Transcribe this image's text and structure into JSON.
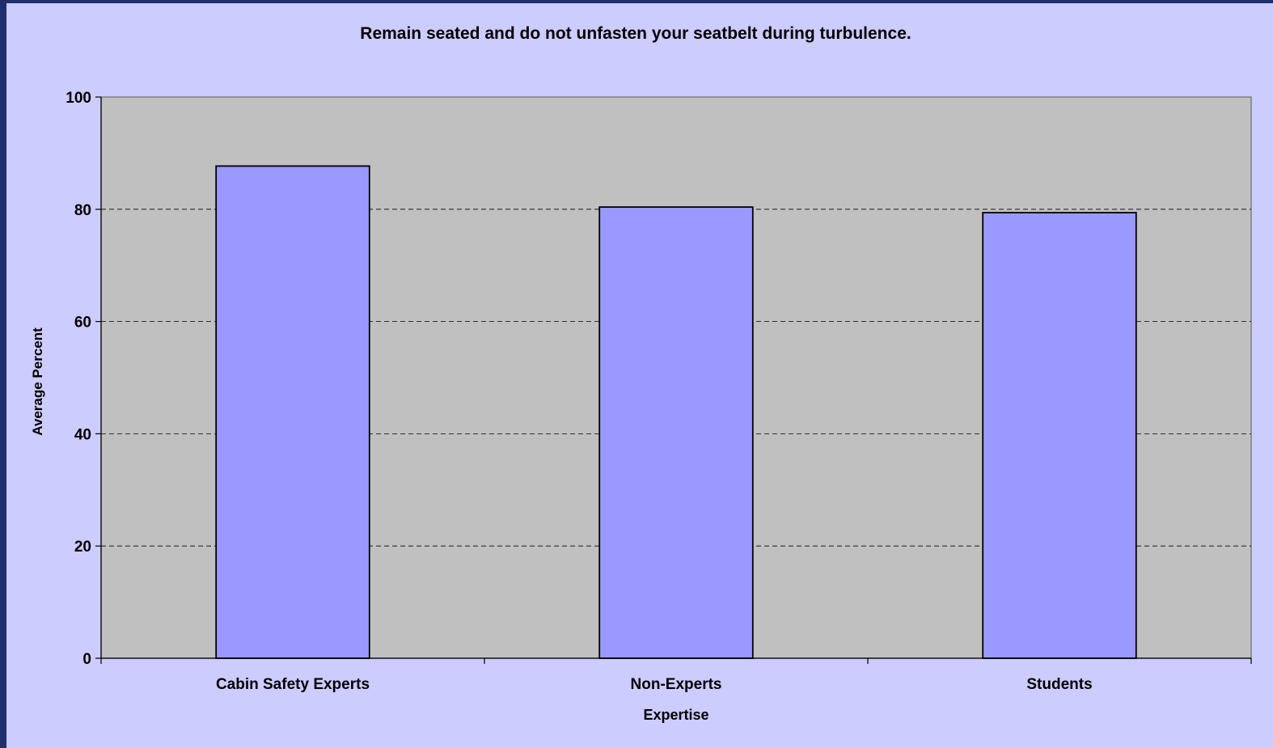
{
  "colors": {
    "frame": "#1f2f6b",
    "chart_background": "#ccccff",
    "plot_background": "#c0c0c0",
    "bar_fill": "#9999ff",
    "bar_stroke": "#000000",
    "gridline": "#000000"
  },
  "chart_data": {
    "type": "bar",
    "title": "Remain seated and do not unfasten your seatbelt during turbulence.",
    "xlabel": "Expertise",
    "ylabel": "Average Percent",
    "categories": [
      "Cabin Safety Experts",
      "Non-Experts",
      "Students"
    ],
    "values": [
      87.7,
      80.4,
      79.4
    ],
    "ylim": [
      0,
      100
    ],
    "yticks": [
      "0",
      "20",
      "40",
      "60",
      "80",
      "100"
    ],
    "grid": "horizontal dashed",
    "legend": "none"
  }
}
